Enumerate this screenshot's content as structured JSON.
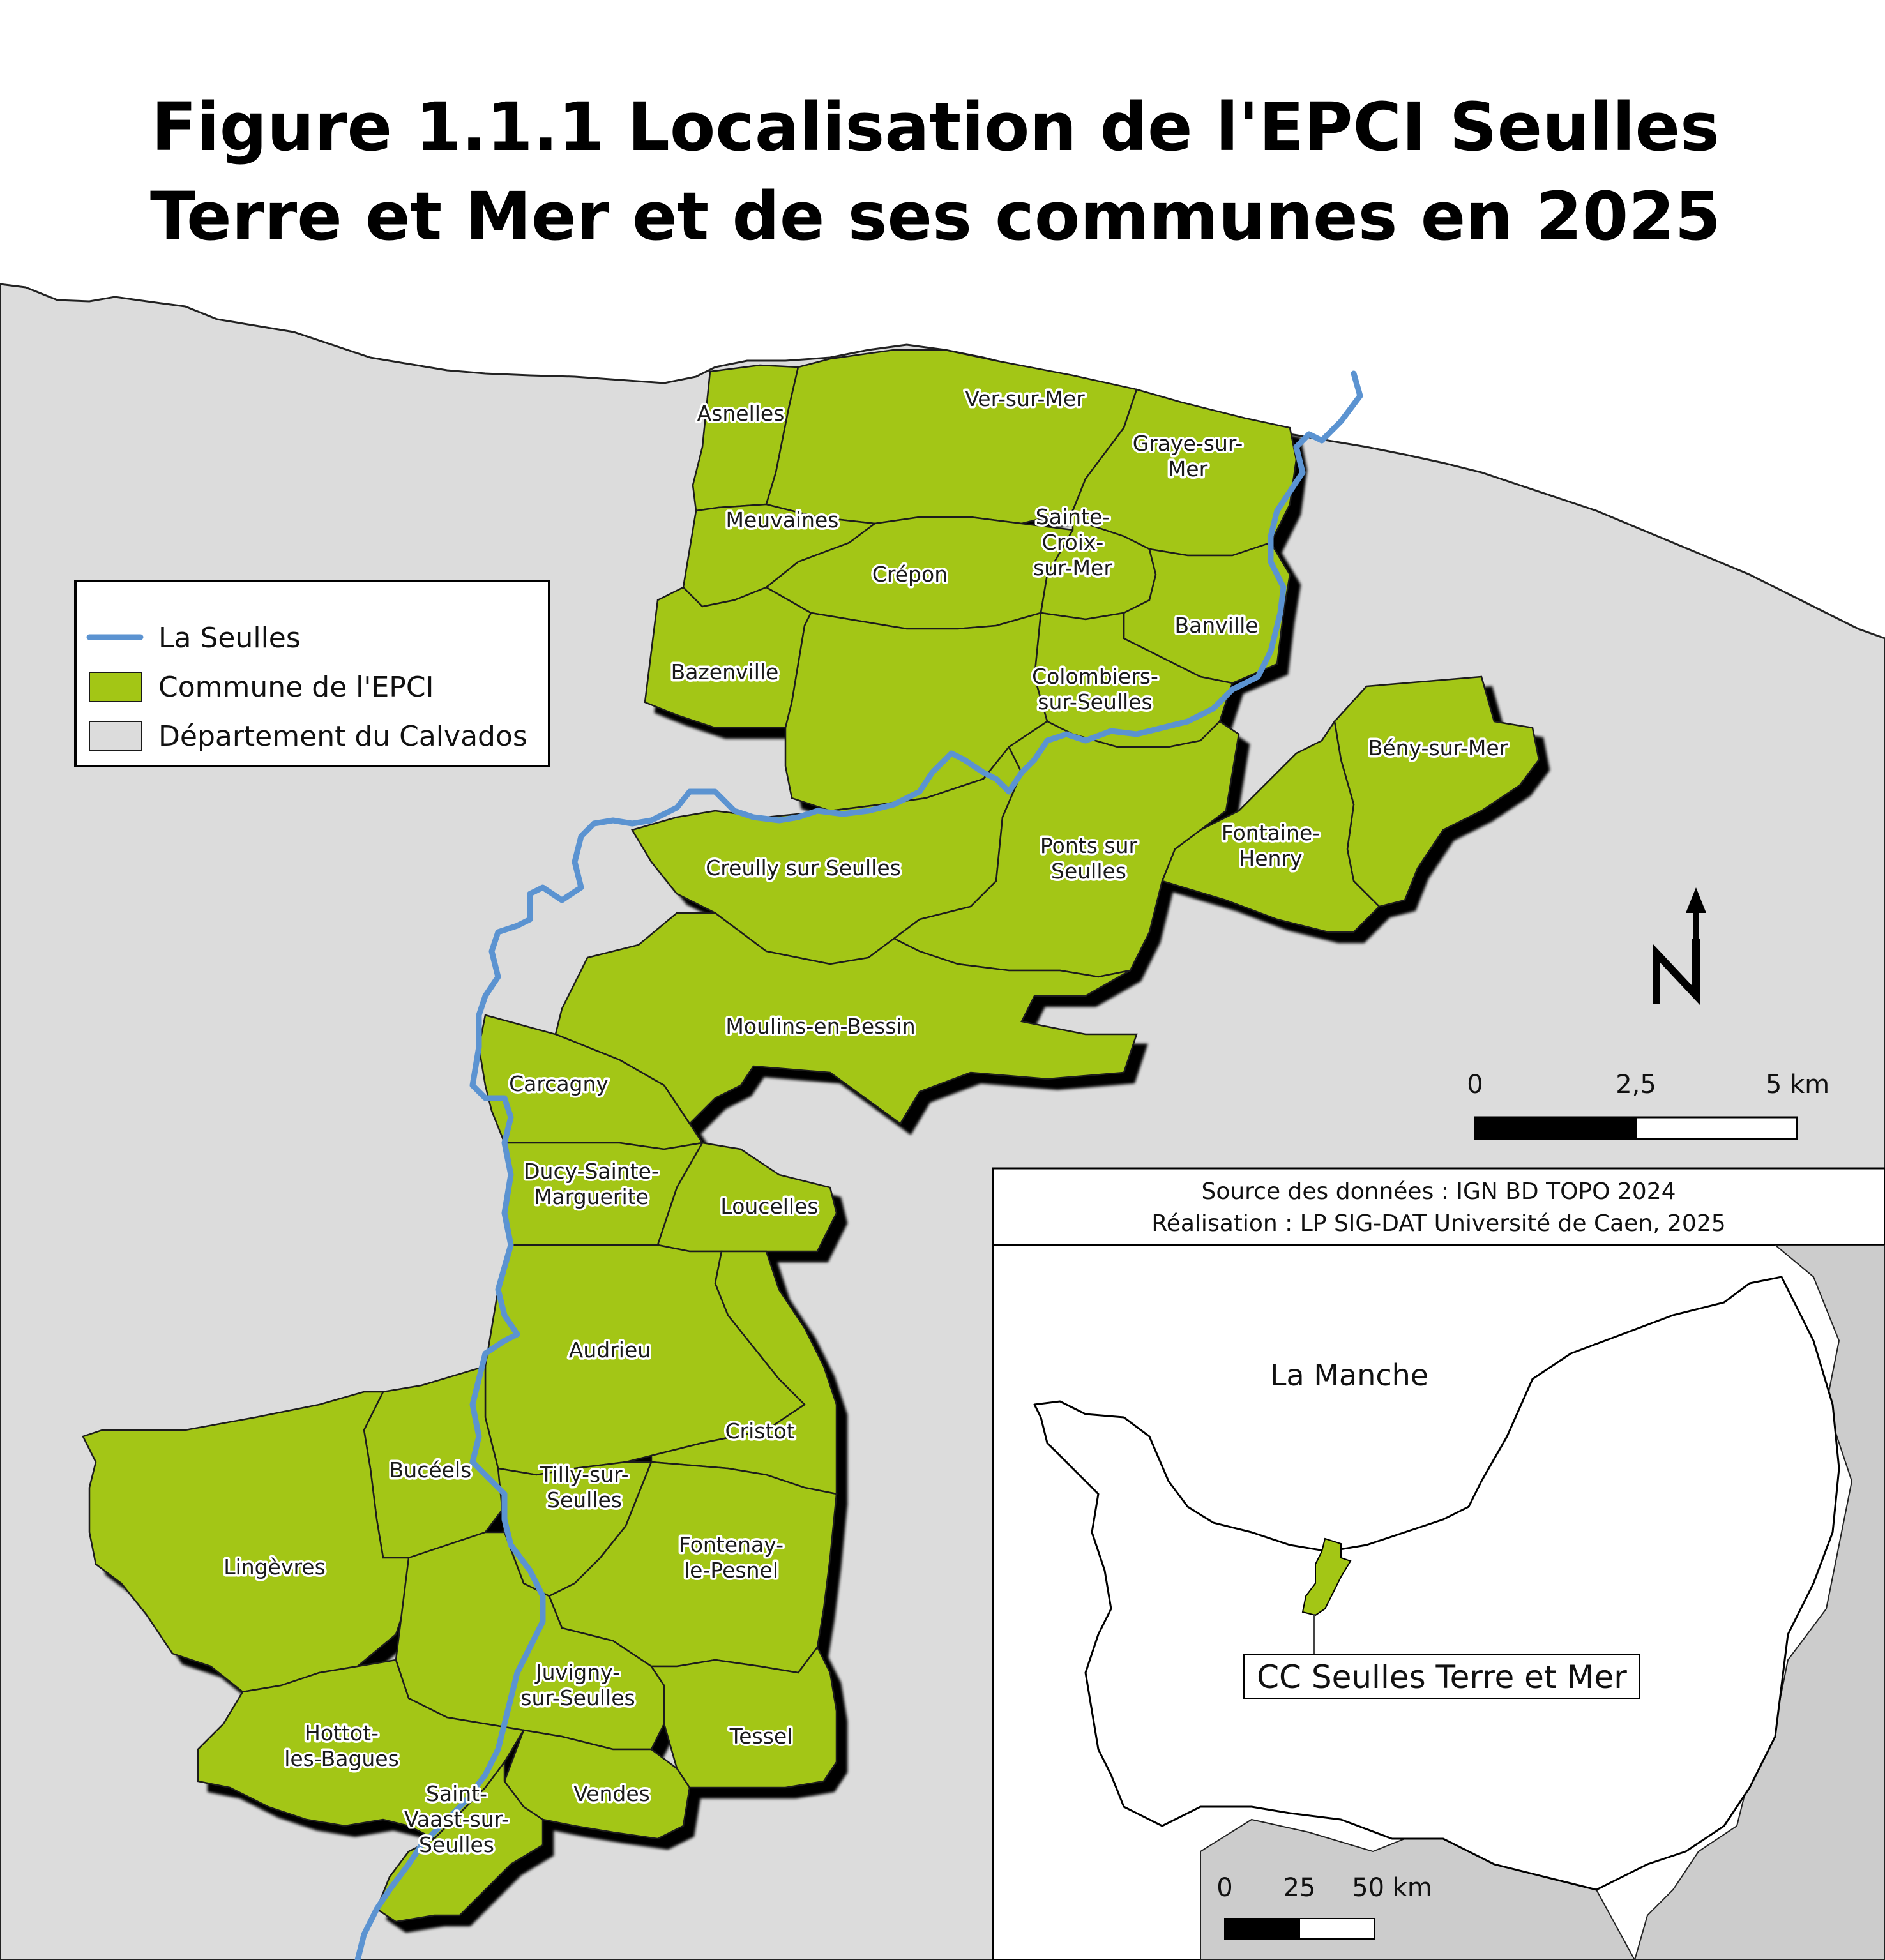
{
  "title_line1": "Figure 1.1.1 Localisation de l'EPCI Seulles",
  "title_line2": "Terre et Mer et de ses communes en 2025",
  "colors": {
    "commune": "#a3c615",
    "department": "#dcdcdc",
    "river": "#5b93d1",
    "sea": "#ffffff",
    "outline": "#000000"
  },
  "legend": {
    "river": "La Seulles",
    "commune": "Commune de l'EPCI",
    "department": "Département du Calvados"
  },
  "communes": [
    {
      "name": "asnelles",
      "label": [
        "Asnelles"
      ]
    },
    {
      "name": "ver-sur-mer",
      "label": [
        "Ver-sur-Mer"
      ]
    },
    {
      "name": "graye-sur-mer",
      "label": [
        "Graye-sur-",
        "Mer"
      ]
    },
    {
      "name": "meuvaines",
      "label": [
        "Meuvaines"
      ]
    },
    {
      "name": "crepon",
      "label": [
        "Crépon"
      ]
    },
    {
      "name": "sainte-croix-sur-mer",
      "label": [
        "Sainte-",
        "Croix-",
        "sur-Mer"
      ]
    },
    {
      "name": "banville",
      "label": [
        "Banville"
      ]
    },
    {
      "name": "bazenville",
      "label": [
        "Bazenville"
      ]
    },
    {
      "name": "colombiers-sur-seulles",
      "label": [
        "Colombiers-",
        "sur-Seulles"
      ]
    },
    {
      "name": "beny-sur-mer",
      "label": [
        "Bény-sur-Mer"
      ]
    },
    {
      "name": "fontaine-henry",
      "label": [
        "Fontaine-",
        "Henry"
      ]
    },
    {
      "name": "creully-sur-seulles",
      "label": [
        "Creully sur Seulles"
      ]
    },
    {
      "name": "ponts-sur-seulles",
      "label": [
        "Ponts sur",
        "Seulles"
      ]
    },
    {
      "name": "moulins-en-bessin",
      "label": [
        "Moulins-en-Bessin"
      ]
    },
    {
      "name": "carcagny",
      "label": [
        "Carcagny"
      ]
    },
    {
      "name": "ducy-sainte-marguerite",
      "label": [
        "Ducy-Sainte-",
        "Marguerite"
      ]
    },
    {
      "name": "loucelles",
      "label": [
        "Loucelles"
      ]
    },
    {
      "name": "audrieu",
      "label": [
        "Audrieu"
      ]
    },
    {
      "name": "cristot",
      "label": [
        "Cristot"
      ]
    },
    {
      "name": "buceels",
      "label": [
        "Bucéels"
      ]
    },
    {
      "name": "tilly-sur-seulles",
      "label": [
        "Tilly-sur-",
        "Seulles"
      ]
    },
    {
      "name": "lingevres",
      "label": [
        "Lingèvres"
      ]
    },
    {
      "name": "fontenay-le-pesnel",
      "label": [
        "Fontenay-",
        "le-Pesnel"
      ]
    },
    {
      "name": "juvigny-sur-seulles",
      "label": [
        "Juvigny-",
        "sur-Seulles"
      ]
    },
    {
      "name": "tessel",
      "label": [
        "Tessel"
      ]
    },
    {
      "name": "hottot-les-bagues",
      "label": [
        "Hottot-",
        "les-Bagues"
      ]
    },
    {
      "name": "vendes",
      "label": [
        "Vendes"
      ]
    },
    {
      "name": "saint-vaast-sur-seulles",
      "label": [
        "Saint-",
        "Vaast-sur-",
        "Seulles"
      ]
    }
  ],
  "north_arrow": "N",
  "scale_main": {
    "ticks": [
      "0",
      "2,5",
      "5 km"
    ]
  },
  "source": {
    "line1": "Source des données : IGN BD TOPO 2024",
    "line2": "Réalisation : LP SIG-DAT Université de Caen, 2025"
  },
  "inset": {
    "sea_label": "La Manche",
    "callout": "CC Seulles Terre et Mer",
    "scale_ticks": [
      "0",
      "25",
      "50 km"
    ]
  }
}
